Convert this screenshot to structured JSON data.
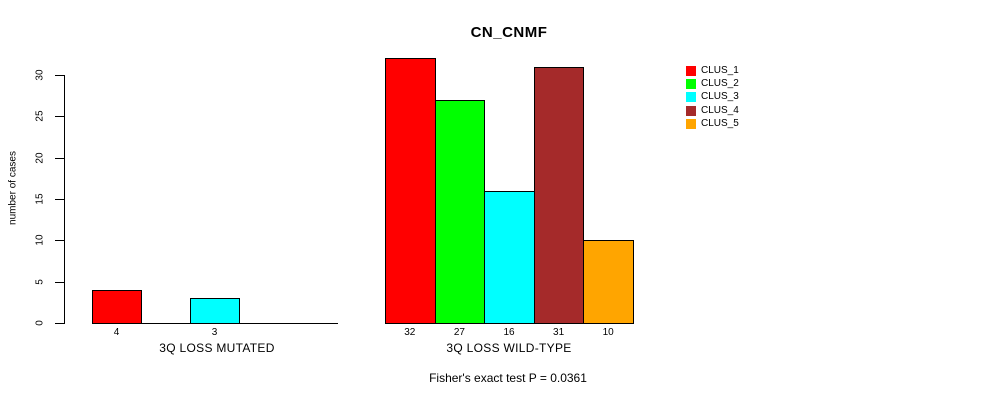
{
  "chart_data": {
    "type": "bar",
    "title": "CN_CNMF",
    "ylabel": "number of cases",
    "xlabel": "",
    "ylim": [
      0,
      30
    ],
    "yticks": [
      0,
      5,
      10,
      15,
      20,
      25,
      30
    ],
    "grid": false,
    "legend": {
      "position": "top-right",
      "entries": [
        {
          "label": "CLUS_1",
          "color": "#FF0000"
        },
        {
          "label": "CLUS_2",
          "color": "#00FF00"
        },
        {
          "label": "CLUS_3",
          "color": "#00FFFF"
        },
        {
          "label": "CLUS_4",
          "color": "#A52A2A"
        },
        {
          "label": "CLUS_5",
          "color": "#FFA500"
        }
      ]
    },
    "categories": [
      "CLUS_1",
      "CLUS_2",
      "CLUS_3",
      "CLUS_4",
      "CLUS_5"
    ],
    "groups": [
      {
        "label": "3Q LOSS MUTATED",
        "values": [
          4,
          0,
          3,
          0,
          0
        ],
        "bar_labels": [
          "4",
          "",
          "3",
          "",
          ""
        ],
        "colors": [
          "#FF0000",
          "#00FF00",
          "#00FFFF",
          "#A52A2A",
          "#FFA500"
        ]
      },
      {
        "label": "3Q LOSS WILD-TYPE",
        "values": [
          32,
          27,
          16,
          31,
          10
        ],
        "bar_labels": [
          "32",
          "27",
          "16",
          "31",
          "10"
        ],
        "colors": [
          "#FF0000",
          "#00FF00",
          "#00FFFF",
          "#A52A2A",
          "#FFA500"
        ]
      }
    ],
    "annotation": "Fisher's exact test P = 0.0361"
  },
  "style": {
    "background": "#FFFFFF",
    "axis_color": "#000000",
    "bar_border_color": "#000000"
  }
}
